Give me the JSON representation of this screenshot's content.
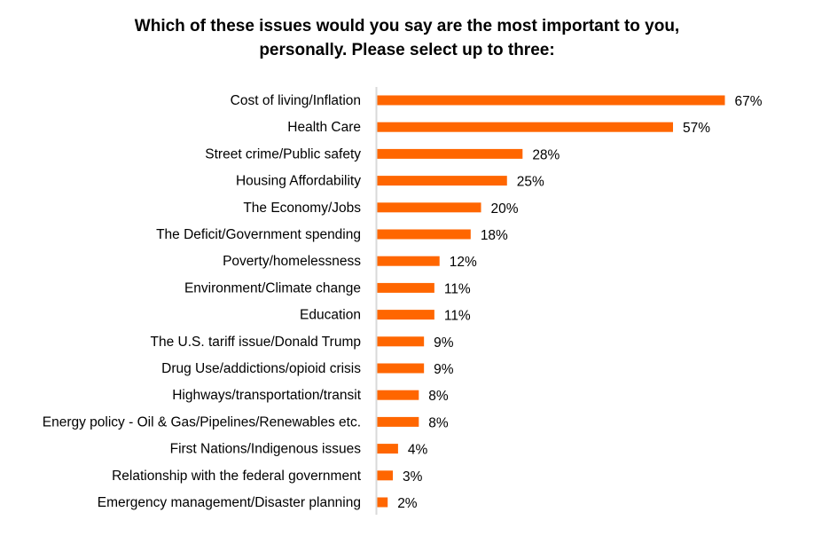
{
  "chart_data": {
    "type": "bar",
    "orientation": "horizontal",
    "title_lines": [
      "Which of these issues would you say are the most important to you,",
      "personally. Please select up to three:"
    ],
    "categories": [
      "Cost of living/Inflation",
      "Health Care",
      "Street crime/Public safety",
      "Housing Affordability",
      "The Economy/Jobs",
      "The Deficit/Government spending",
      "Poverty/homelessness",
      "Environment/Climate change",
      "Education",
      "The U.S. tariff issue/Donald Trump",
      "Drug Use/addictions/opioid crisis",
      "Highways/transportation/transit",
      "Energy policy - Oil & Gas/Pipelines/Renewables etc.",
      "First Nations/Indigenous issues",
      "Relationship with the federal government",
      "Emergency management/Disaster planning"
    ],
    "values": [
      67,
      57,
      28,
      25,
      20,
      18,
      12,
      11,
      11,
      9,
      9,
      8,
      8,
      4,
      3,
      2
    ],
    "value_labels": [
      "67%",
      "57%",
      "28%",
      "25%",
      "20%",
      "18%",
      "12%",
      "11%",
      "11%",
      "9%",
      "9%",
      "8%",
      "8%",
      "4%",
      "3%",
      "2%"
    ],
    "unit": "%",
    "xlabel": "",
    "ylabel": "",
    "xlim": [
      0,
      70
    ],
    "grid": false,
    "legend": "none",
    "colors": {
      "bar": "#FF6600",
      "axis": "#D9D9D9",
      "text": "#000000"
    }
  }
}
